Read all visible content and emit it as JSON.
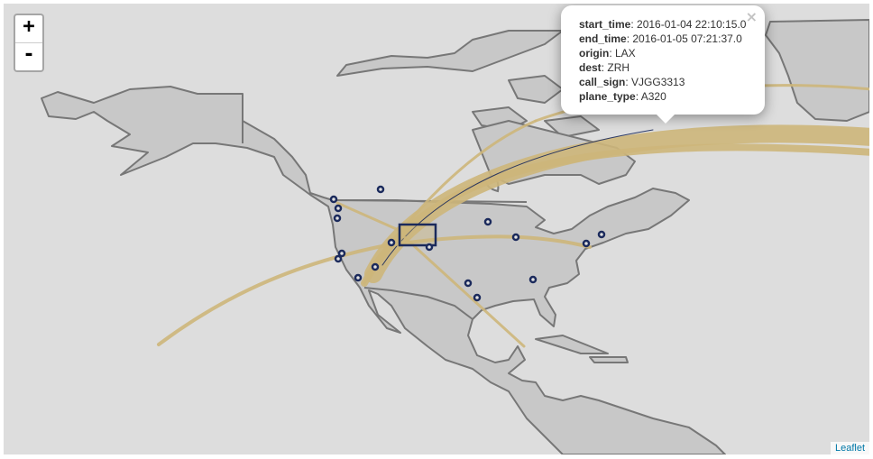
{
  "zoom_control": {
    "zoom_in": "+",
    "zoom_out": "-"
  },
  "popup": {
    "close": "×",
    "fields": [
      {
        "key": "start_time",
        "value": "2016-01-04 22:10:15.0"
      },
      {
        "key": "end_time",
        "value": "2016-01-05 07:21:37.0"
      },
      {
        "key": "origin",
        "value": "LAX"
      },
      {
        "key": "dest",
        "value": "ZRH"
      },
      {
        "key": "call_sign",
        "value": "VJGG3313"
      },
      {
        "key": "plane_type",
        "value": "A320"
      }
    ]
  },
  "attribution": "Leaflet",
  "colors": {
    "water": "#dddddd",
    "land": "#c8c8c8",
    "route": "#cdb67a",
    "airport": "#1b2a5c"
  }
}
